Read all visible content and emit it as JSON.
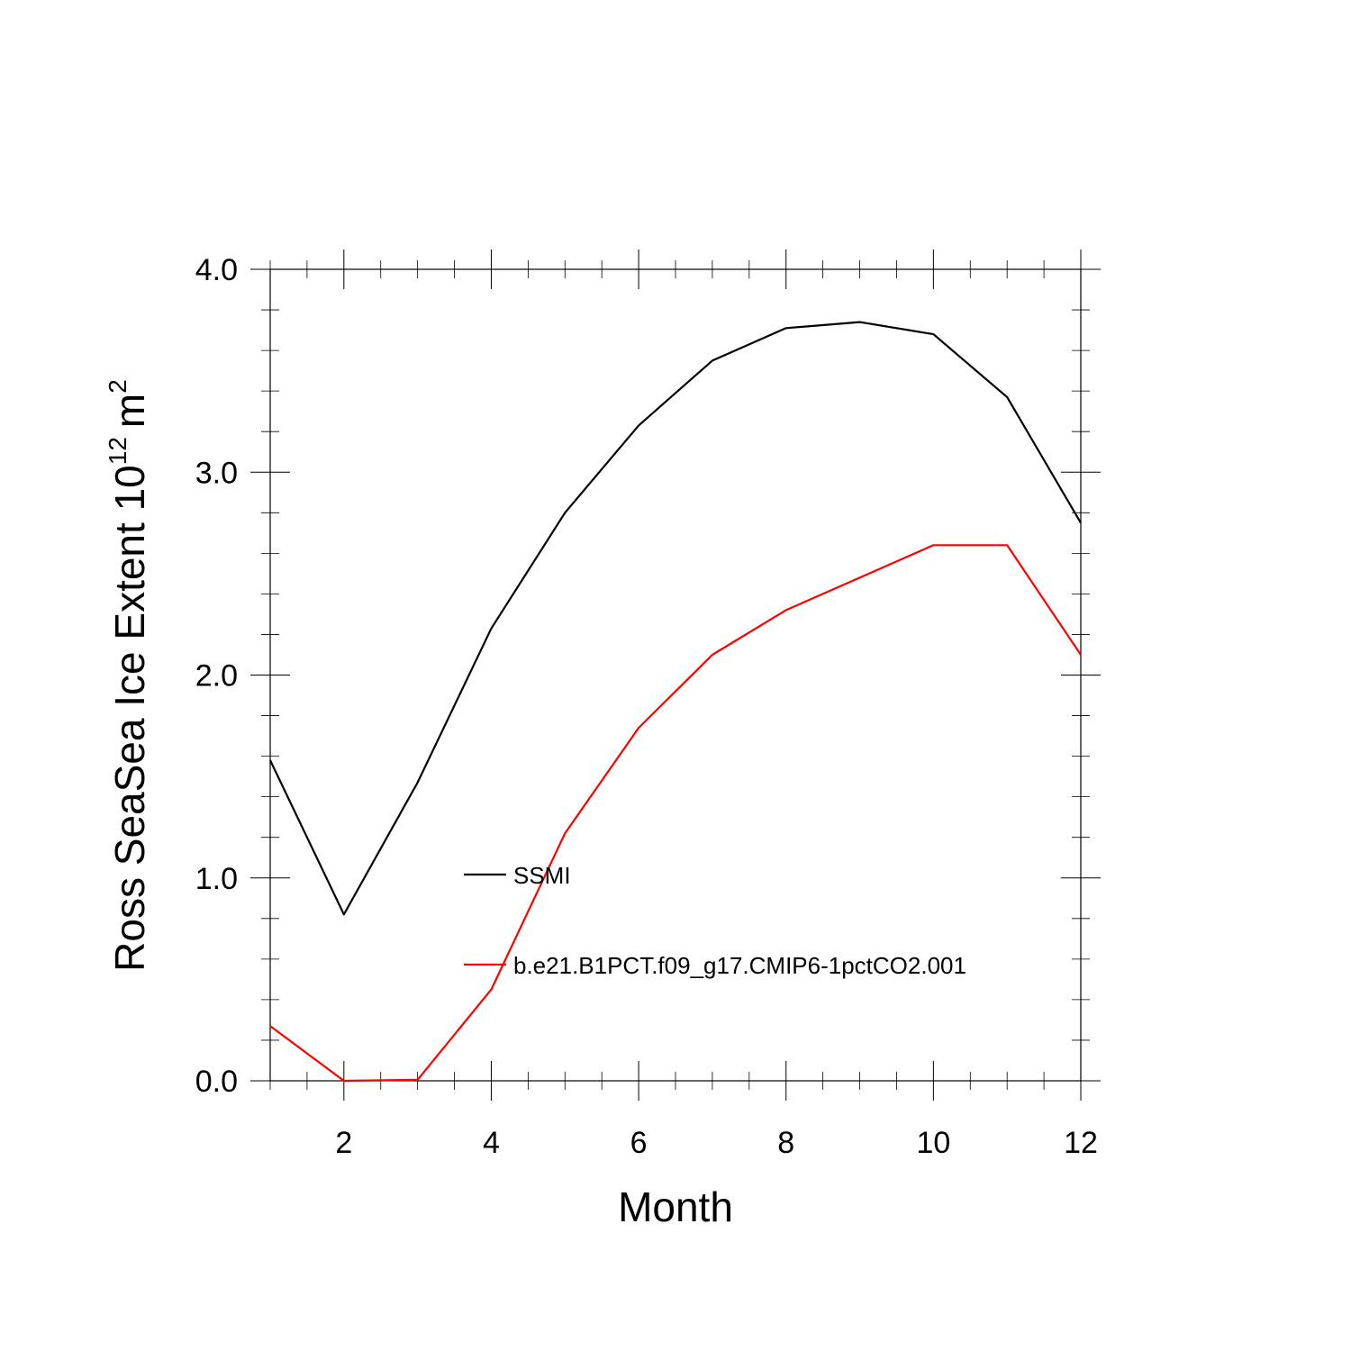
{
  "chart_data": {
    "type": "line",
    "xlabel": "Month",
    "ylabel": {
      "text": "Ross SeaSea Ice Extent 10",
      "exponent": "12",
      "unit": "m",
      "unit_exponent": "2"
    },
    "xlim": [
      1,
      12
    ],
    "ylim": [
      0.0,
      4.0
    ],
    "x_major_ticks": [
      2,
      4,
      6,
      8,
      10,
      12
    ],
    "x_tick_labels": [
      "2",
      "4",
      "6",
      "8",
      "10",
      "12"
    ],
    "y_major_ticks": [
      0,
      1,
      2,
      3,
      4
    ],
    "y_tick_labels": [
      "0.0",
      "1.0",
      "2.0",
      "3.0",
      "4.0"
    ],
    "grid": false,
    "legend_position": "center-right inside plot",
    "x": [
      1,
      2,
      3,
      4,
      5,
      6,
      7,
      8,
      9,
      10,
      11,
      12
    ],
    "series": [
      {
        "name": "SSMI",
        "color": "#000000",
        "values": [
          1.58,
          0.82,
          1.47,
          2.23,
          2.8,
          3.23,
          3.55,
          3.71,
          3.74,
          3.68,
          3.37,
          2.75
        ]
      },
      {
        "name": "b.e21.B1PCT.f09_g17.CMIP6-1pctCO2.001",
        "color": "#ff0000",
        "values": [
          0.27,
          0.0,
          0.005,
          0.45,
          1.22,
          1.74,
          2.1,
          2.32,
          2.48,
          2.64,
          2.64,
          2.1
        ]
      }
    ]
  }
}
